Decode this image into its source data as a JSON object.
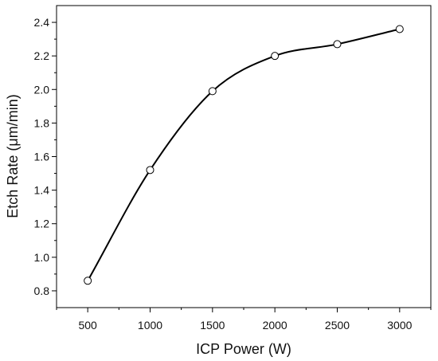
{
  "chart_data": {
    "type": "line",
    "title": "",
    "xlabel": "ICP Power (W)",
    "ylabel": "Etch Rate (μm/min)",
    "xlim": [
      250,
      3250
    ],
    "ylim": [
      0.7,
      2.5
    ],
    "x_ticks": [
      500,
      1000,
      1500,
      2000,
      2500,
      3000
    ],
    "y_ticks": [
      0.8,
      1.0,
      1.2,
      1.4,
      1.6,
      1.8,
      2.0,
      2.2,
      2.4
    ],
    "x_tick_labels": [
      "500",
      "1000",
      "1500",
      "2000",
      "2500",
      "3000"
    ],
    "y_tick_labels": [
      "0.8",
      "1.0",
      "1.2",
      "1.4",
      "1.6",
      "1.8",
      "2.0",
      "2.2",
      "2.4"
    ],
    "grid": false,
    "smooth": true,
    "series": [
      {
        "x": [
          500,
          1000,
          1500,
          2000,
          2500,
          3000
        ],
        "y": [
          0.86,
          1.52,
          1.99,
          2.2,
          2.27,
          2.36
        ],
        "color": "#000000",
        "marker": "open-circle"
      }
    ]
  }
}
